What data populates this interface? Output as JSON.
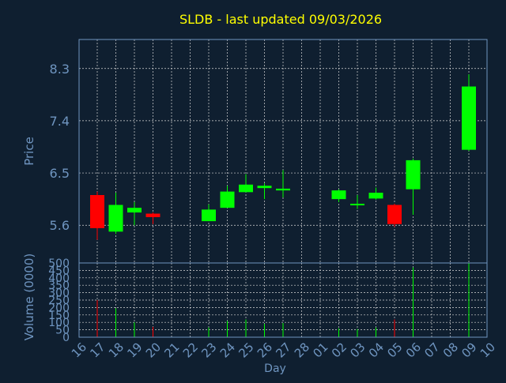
{
  "colors": {
    "background": "#0f1f30",
    "title": "#ffff00",
    "axis_text": "#6f95c0",
    "frame": "#6f95c0",
    "grid": "#d8d8d8",
    "up": "#00ff00",
    "down": "#ff0000"
  },
  "chart_data": {
    "type": "candlestick",
    "title": "SLDB - last updated 09/03/2026",
    "xlabel": "Day",
    "ylabel_price": "Price",
    "ylabel_volume": "Volume (0000)",
    "price_ylim": [
      4.95,
      8.8
    ],
    "price_yticks": [
      "5.6",
      "6.5",
      "7.4",
      "8.3"
    ],
    "volume_ylim": [
      0,
      500
    ],
    "volume_yticks": [
      "0",
      "50",
      "100",
      "150",
      "200",
      "250",
      "300",
      "350",
      "400",
      "450",
      "500"
    ],
    "x_ticks": [
      "16",
      "17",
      "18",
      "19",
      "20",
      "21",
      "22",
      "23",
      "24",
      "25",
      "26",
      "27",
      "28",
      "01",
      "02",
      "03",
      "04",
      "05",
      "06",
      "07",
      "08",
      "09",
      "10"
    ],
    "grid": true,
    "candles": [
      {
        "day": "17",
        "open": 6.12,
        "high": 6.18,
        "low": 5.35,
        "close": 5.55,
        "volume": 250
      },
      {
        "day": "18",
        "open": 5.49,
        "high": 6.16,
        "low": 5.45,
        "close": 5.95,
        "volume": 195
      },
      {
        "day": "19",
        "open": 5.82,
        "high": 6.0,
        "low": 5.6,
        "close": 5.9,
        "volume": 100
      },
      {
        "day": "20",
        "open": 5.8,
        "high": 5.82,
        "low": 5.62,
        "close": 5.74,
        "volume": 70
      },
      {
        "day": "23",
        "open": 5.67,
        "high": 5.96,
        "low": 5.67,
        "close": 5.87,
        "volume": 65
      },
      {
        "day": "24",
        "open": 5.9,
        "high": 6.28,
        "low": 5.9,
        "close": 6.18,
        "volume": 110
      },
      {
        "day": "25",
        "open": 6.17,
        "high": 6.48,
        "low": 6.17,
        "close": 6.3,
        "volume": 120
      },
      {
        "day": "26",
        "open": 6.24,
        "high": 6.32,
        "low": 6.05,
        "close": 6.28,
        "volume": 90
      },
      {
        "day": "27",
        "open": 6.2,
        "high": 6.55,
        "low": 6.08,
        "close": 6.23,
        "volume": 95
      },
      {
        "day": "02",
        "open": 6.05,
        "high": 6.22,
        "low": 6.0,
        "close": 6.2,
        "volume": 60
      },
      {
        "day": "03",
        "open": 5.95,
        "high": 6.12,
        "low": 5.88,
        "close": 5.97,
        "volume": 55
      },
      {
        "day": "04",
        "open": 6.06,
        "high": 6.25,
        "low": 6.04,
        "close": 6.16,
        "volume": 65
      },
      {
        "day": "05",
        "open": 5.95,
        "high": 5.97,
        "low": 5.57,
        "close": 5.62,
        "volume": 120
      },
      {
        "day": "06",
        "open": 6.22,
        "high": 6.75,
        "low": 5.78,
        "close": 6.72,
        "volume": 470
      },
      {
        "day": "09",
        "open": 6.9,
        "high": 8.2,
        "low": 6.88,
        "close": 7.99,
        "volume": 500
      }
    ]
  }
}
